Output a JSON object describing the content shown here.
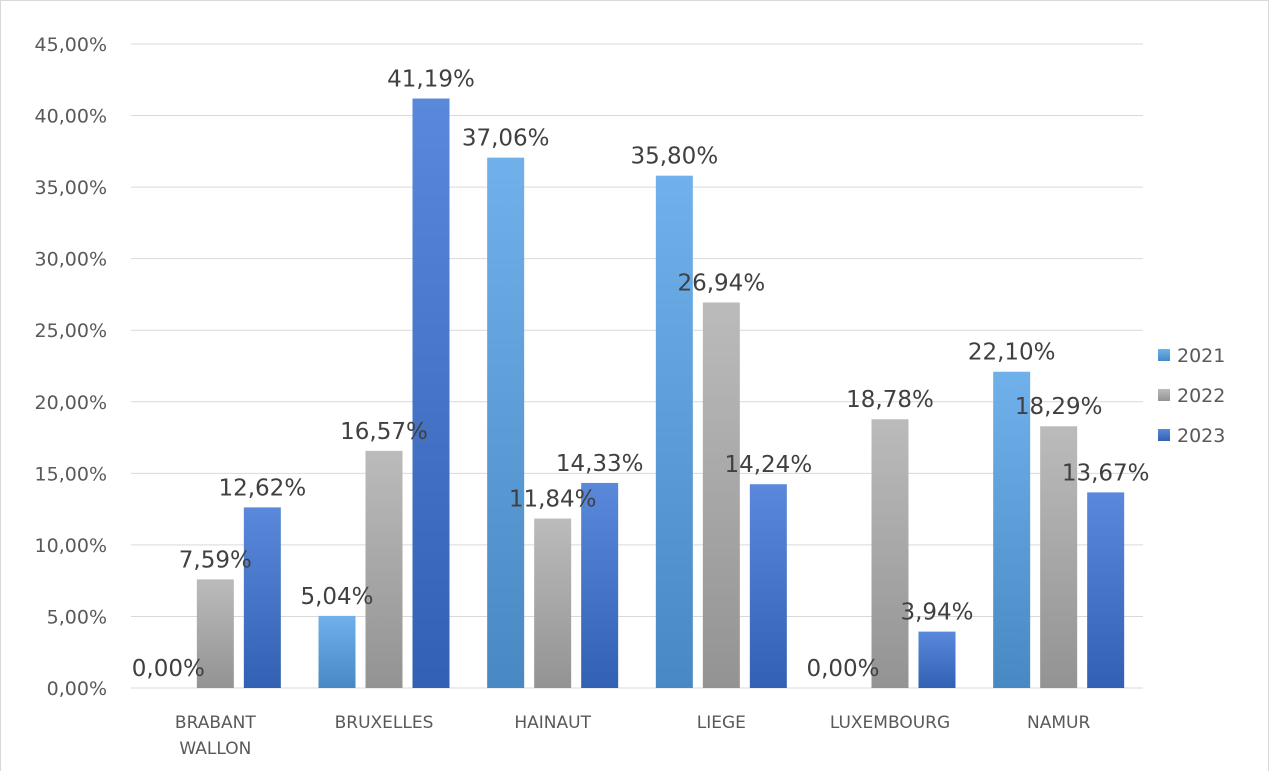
{
  "chart_data": {
    "type": "bar",
    "title": "",
    "xlabel": "",
    "ylabel": "",
    "categories": [
      [
        "BRABANT",
        "WALLON"
      ],
      [
        "BRUXELLES"
      ],
      [
        "HAINAUT"
      ],
      [
        "LIEGE"
      ],
      [
        "LUXEMBOURG"
      ],
      [
        "NAMUR"
      ]
    ],
    "series": [
      {
        "name": "2021",
        "values": [
          0.0,
          5.04,
          37.06,
          35.8,
          0.0,
          22.1
        ],
        "labels": [
          "0,00%",
          "5,04%",
          "37,06%",
          "35,80%",
          "0,00%",
          "22,10%"
        ],
        "color": "#5b9bd5"
      },
      {
        "name": "2022",
        "values": [
          7.59,
          16.57,
          11.84,
          26.94,
          18.78,
          18.29
        ],
        "labels": [
          "7,59%",
          "16,57%",
          "11,84%",
          "26,94%",
          "18,78%",
          "18,29%"
        ],
        "color": "#a5a5a5"
      },
      {
        "name": "2023",
        "values": [
          12.62,
          41.19,
          14.33,
          14.24,
          3.94,
          13.67
        ],
        "labels": [
          "12,62%",
          "41,19%",
          "14,33%",
          "14,24%",
          "3,94%",
          "13,67%"
        ],
        "color": "#4472c4"
      }
    ],
    "ylim": [
      0,
      45
    ],
    "yticks": [
      0,
      5,
      10,
      15,
      20,
      25,
      30,
      35,
      40,
      45
    ],
    "ytick_labels": [
      "0,00%",
      "5,00%",
      "10,00%",
      "15,00%",
      "20,00%",
      "25,00%",
      "30,00%",
      "35,00%",
      "40,00%",
      "45,00%"
    ],
    "grid": true,
    "legend_position": "right"
  }
}
